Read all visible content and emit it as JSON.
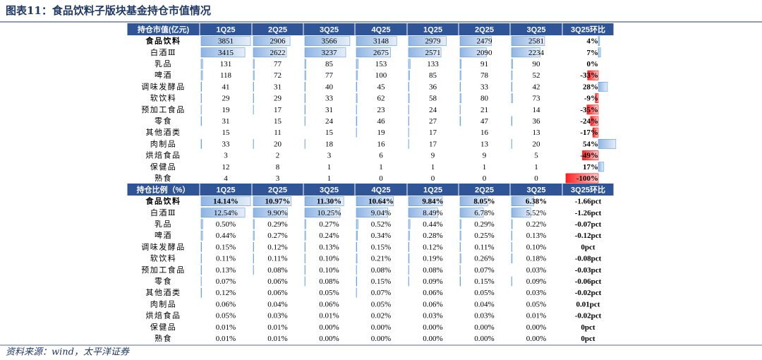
{
  "title": "图表11：食品饮料子版块基金持仓市值情况",
  "source": "资料来源：wind，太平洋证券",
  "tables": [
    {
      "header": [
        "持仓市值(亿元)",
        "1Q25",
        "2Q25",
        "3Q25",
        "4Q25",
        "1Q25",
        "2Q25",
        "3Q25",
        "3Q25环比"
      ],
      "rows": [
        [
          "食品饮料",
          "3851",
          "2906",
          "3566",
          "3148",
          "2979",
          "2479",
          "2581",
          "4%"
        ],
        [
          "白酒Ⅲ",
          "3415",
          "2622",
          "3237",
          "2675",
          "2571",
          "2090",
          "2234",
          "7%"
        ],
        [
          "乳品",
          "131",
          "77",
          "85",
          "153",
          "133",
          "91",
          "90",
          "0%"
        ],
        [
          "啤酒",
          "118",
          "72",
          "77",
          "100",
          "85",
          "78",
          "52",
          "-33%"
        ],
        [
          "调味发酵品",
          "41",
          "31",
          "40",
          "45",
          "36",
          "33",
          "42",
          "28%"
        ],
        [
          "软饮料",
          "29",
          "29",
          "33",
          "62",
          "58",
          "80",
          "73",
          "-9%"
        ],
        [
          "预加工食品",
          "19",
          "17",
          "31",
          "23",
          "24",
          "21",
          "14",
          "-35%"
        ],
        [
          "零食",
          "31",
          "15",
          "24",
          "46",
          "27",
          "47",
          "36",
          "-24%"
        ],
        [
          "其他酒类",
          "15",
          "11",
          "15",
          "19",
          "17",
          "16",
          "13",
          "-17%"
        ],
        [
          "肉制品",
          "33",
          "20",
          "18",
          "16",
          "17",
          "13",
          "20",
          "54%"
        ],
        [
          "烘焙食品",
          "3",
          "2",
          "3",
          "6",
          "9",
          "9",
          "5",
          "-49%"
        ],
        [
          "保健品",
          "12",
          "8",
          "1",
          "1",
          "1",
          "1",
          "1",
          "17%"
        ],
        [
          "熟食",
          "4",
          "3",
          "1",
          "0",
          "0",
          "0",
          "0",
          "-100%"
        ]
      ]
    },
    {
      "header": [
        "持仓比例（%）",
        "1Q25",
        "2Q25",
        "3Q25",
        "4Q25",
        "1Q25",
        "2Q25",
        "3Q25",
        "3Q25环比"
      ],
      "rows": [
        [
          "食品饮料",
          "14.14%",
          "10.97%",
          "11.30%",
          "10.64%",
          "9.84%",
          "8.05%",
          "6.38%",
          "-1.66pct"
        ],
        [
          "白酒Ⅲ",
          "12.54%",
          "9.90%",
          "10.25%",
          "9.04%",
          "8.49%",
          "6.78%",
          "5.52%",
          "-1.26pct"
        ],
        [
          "乳品",
          "0.50%",
          "0.29%",
          "0.27%",
          "0.52%",
          "0.44%",
          "0.29%",
          "0.22%",
          "-0.07pct"
        ],
        [
          "啤酒",
          "0.44%",
          "0.27%",
          "0.24%",
          "0.34%",
          "0.28%",
          "0.25%",
          "0.13%",
          "-0.12pct"
        ],
        [
          "调味发酵品",
          "0.15%",
          "0.12%",
          "0.13%",
          "0.15%",
          "0.12%",
          "0.11%",
          "0.10%",
          "0pct"
        ],
        [
          "软饮料",
          "0.11%",
          "0.11%",
          "0.10%",
          "0.21%",
          "0.19%",
          "0.26%",
          "0.18%",
          "-0.08pct"
        ],
        [
          "预加工食品",
          "0.13%",
          "0.08%",
          "0.10%",
          "0.08%",
          "0.08%",
          "0.07%",
          "0.03%",
          "-0.03pct"
        ],
        [
          "零食",
          "0.07%",
          "0.06%",
          "0.08%",
          "0.15%",
          "0.09%",
          "0.15%",
          "0.09%",
          "-0.06pct"
        ],
        [
          "其他酒类",
          "0.12%",
          "0.06%",
          "0.05%",
          "0.07%",
          "0.06%",
          "0.05%",
          "0.03%",
          "-0.02pct"
        ],
        [
          "肉制品",
          "0.06%",
          "0.04%",
          "0.06%",
          "0.05%",
          "0.06%",
          "0.04%",
          "0.05%",
          "0.01pct"
        ],
        [
          "烘焙食品",
          "0.05%",
          "0.03%",
          "0.01%",
          "0.02%",
          "0.03%",
          "0.03%",
          "0.01%",
          "-0.02pct"
        ],
        [
          "保健品",
          "0.01%",
          "0.01%",
          "0.00%",
          "0.00%",
          "0.00%",
          "0.00%",
          "0.00%",
          "0pct"
        ],
        [
          "熟食",
          "0.01%",
          "0.01%",
          "0.00%",
          "0.00%",
          "0.00%",
          "0.00%",
          "0.00%",
          "0pct"
        ]
      ]
    }
  ]
}
